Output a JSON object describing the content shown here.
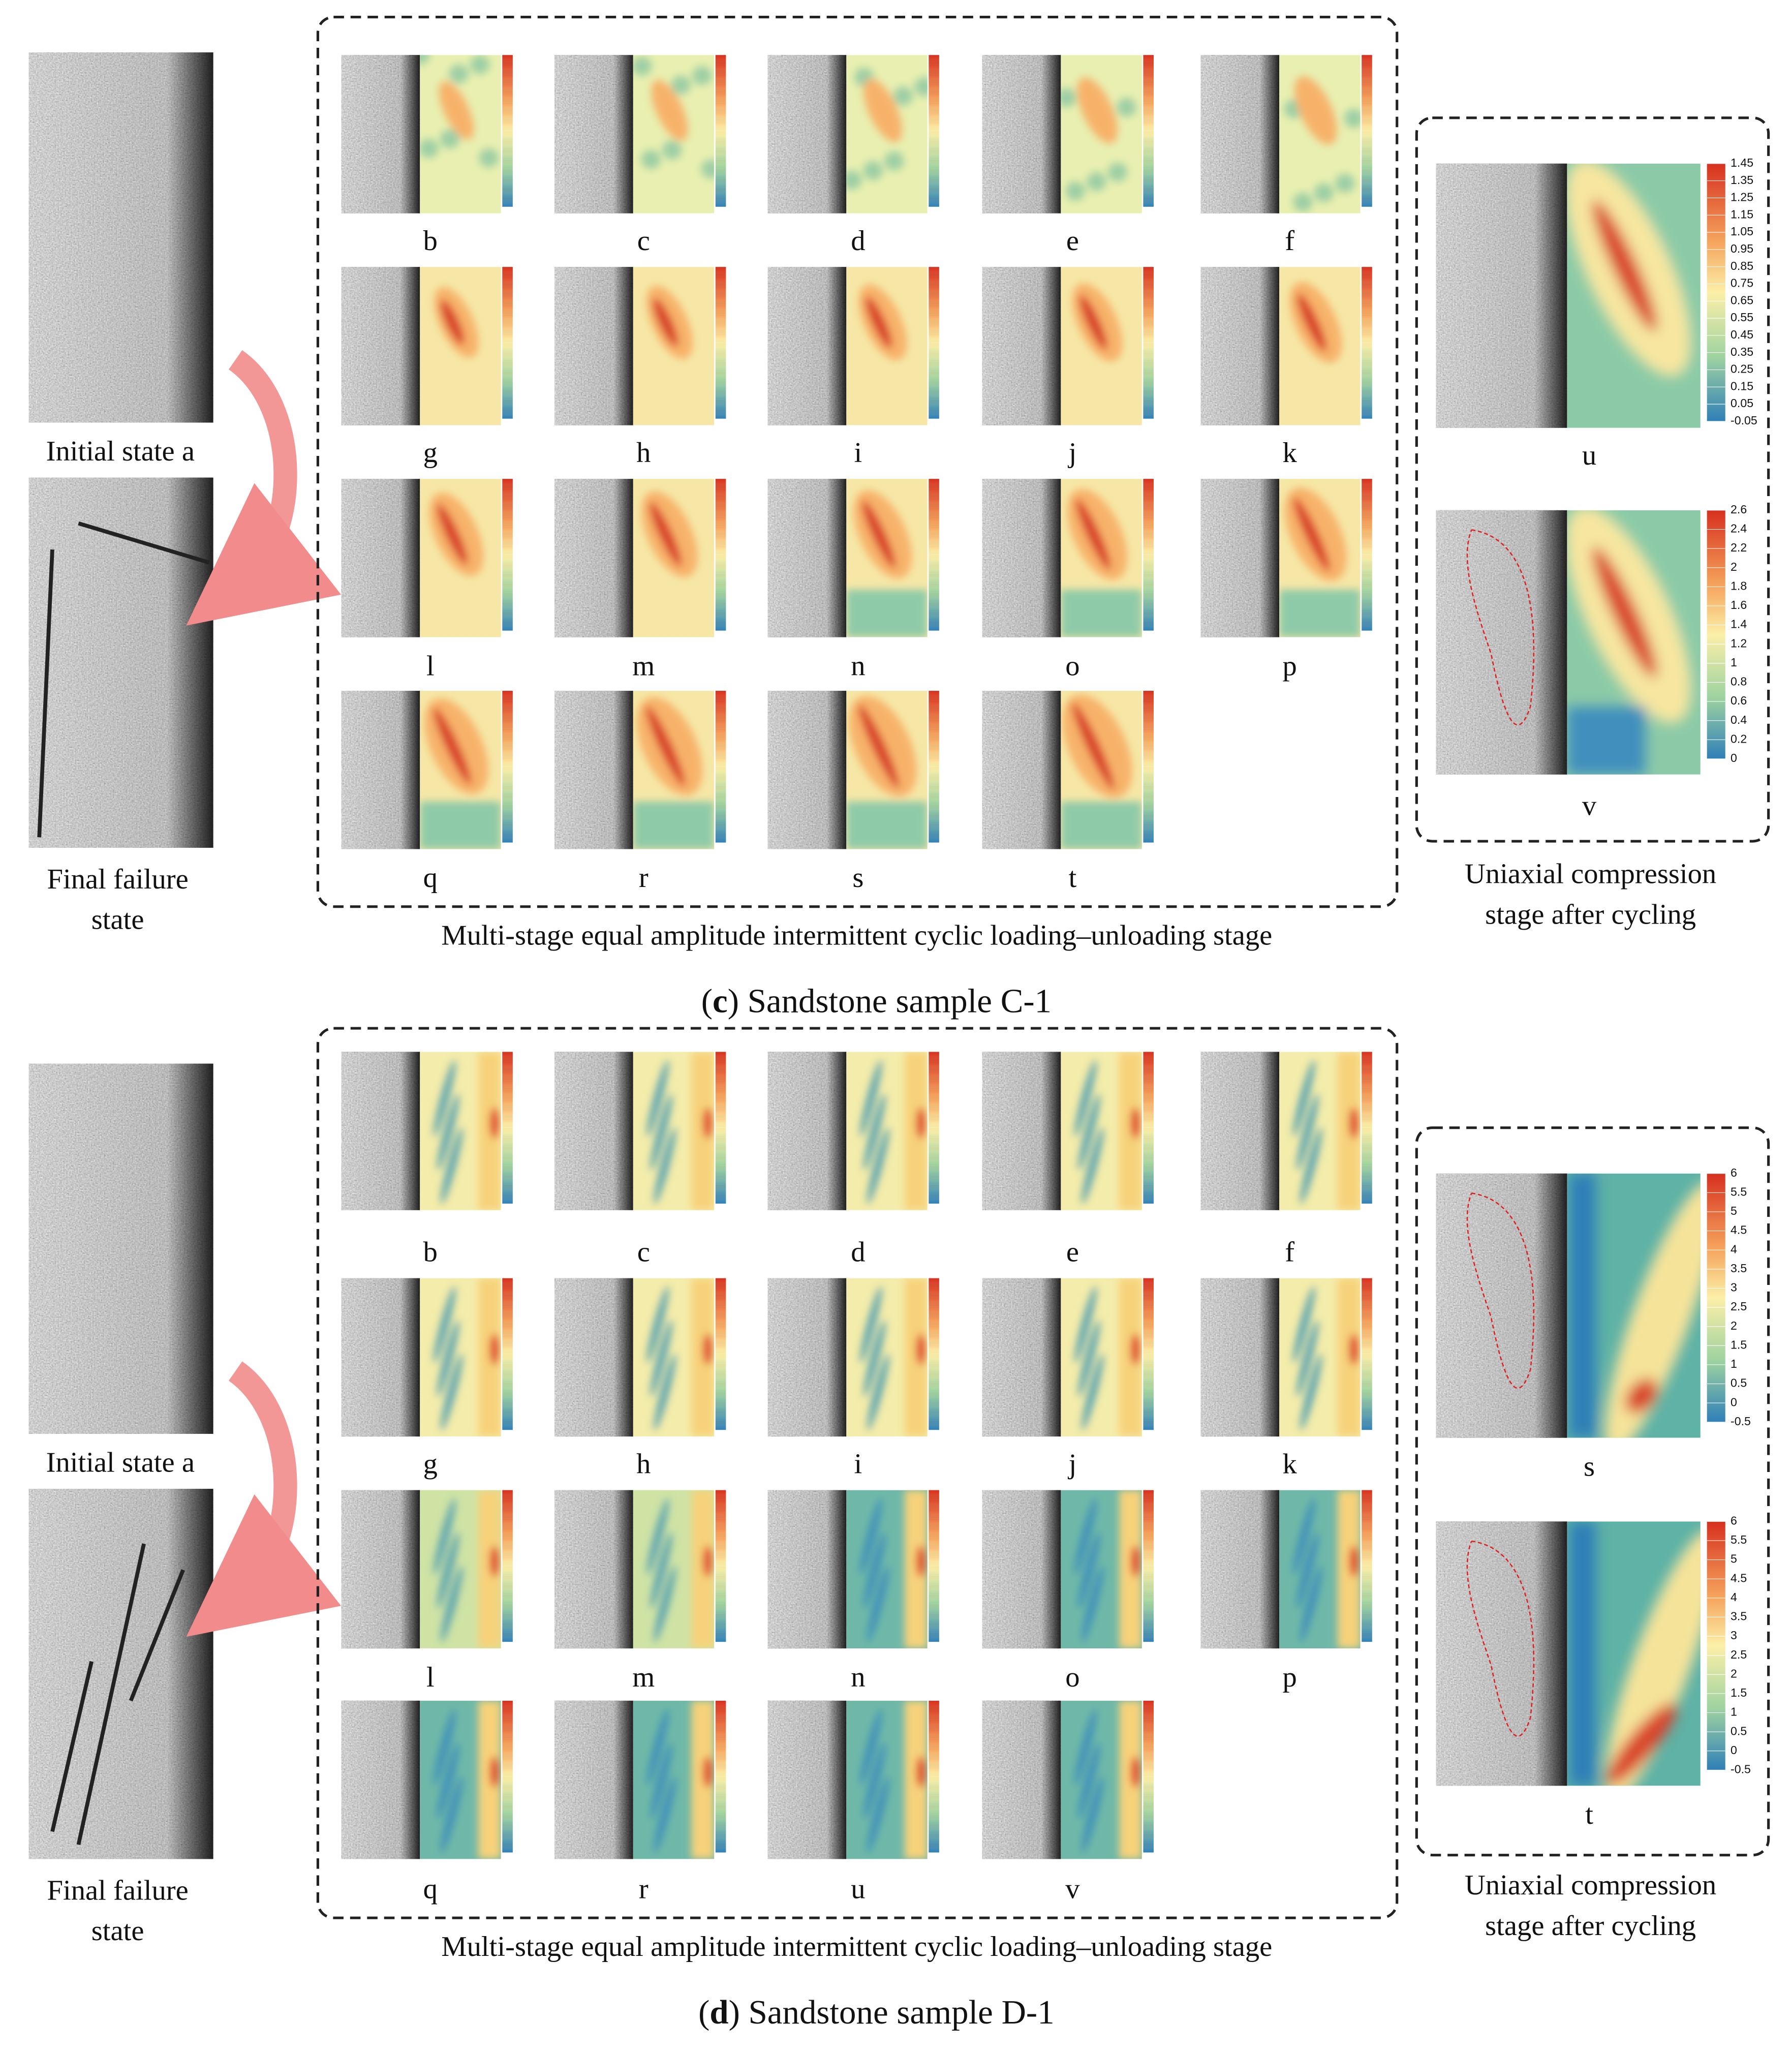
{
  "sections": [
    {
      "initial_label": "Initial state a",
      "final_label": [
        "Final failure",
        "state"
      ],
      "grid_labels": [
        "b",
        "c",
        "d",
        "e",
        "f",
        "g",
        "h",
        "i",
        "j",
        "k",
        "l",
        "m",
        "n",
        "o",
        "p",
        "q",
        "r",
        "s",
        "t"
      ],
      "grid_caption": "Multi-stage equal amplitude intermittent cyclic loading–unloading stage",
      "side_panels": [
        {
          "label": "u",
          "colorbar_ticks": [
            1.45,
            1.35,
            1.25,
            1.15,
            1.05,
            0.95,
            0.85,
            0.75,
            0.65,
            0.55,
            0.45,
            0.35,
            0.25,
            0.15,
            0.05,
            -0.05
          ]
        },
        {
          "label": "v",
          "colorbar_ticks": [
            2.6,
            2.4,
            2.2,
            2,
            1.8,
            1.6,
            1.4,
            1.2,
            1,
            0.8,
            0.6,
            0.4,
            0.2,
            0
          ]
        }
      ],
      "side_caption": [
        "Uniaxial compression",
        "stage after cycling"
      ],
      "caption": {
        "open": "(",
        "letter": "c",
        "rest": ") Sandstone sample C-1"
      }
    },
    {
      "initial_label": "Initial state a",
      "final_label": [
        "Final failure",
        "state"
      ],
      "grid_labels": [
        "b",
        "c",
        "d",
        "e",
        "f",
        "g",
        "h",
        "i",
        "j",
        "k",
        "l",
        "m",
        "n",
        "o",
        "p",
        "q",
        "r",
        "u",
        "v"
      ],
      "grid_caption": "Multi-stage equal amplitude intermittent cyclic loading–unloading stage",
      "side_panels": [
        {
          "label": "s",
          "colorbar_ticks": [
            6,
            5.5,
            5,
            4.5,
            4,
            3.5,
            3,
            2.5,
            2,
            1.5,
            1,
            0.5,
            0,
            -0.5
          ]
        },
        {
          "label": "t",
          "colorbar_ticks": [
            6,
            5.5,
            5,
            4.5,
            4,
            3.5,
            3,
            2.5,
            2,
            1.5,
            1,
            0.5,
            0,
            -0.5
          ]
        }
      ],
      "side_caption": [
        "Uniaxial compression",
        "stage after cycling"
      ],
      "caption": {
        "open": "(",
        "letter": "d",
        "rest": ") Sandstone sample D-1"
      }
    }
  ]
}
